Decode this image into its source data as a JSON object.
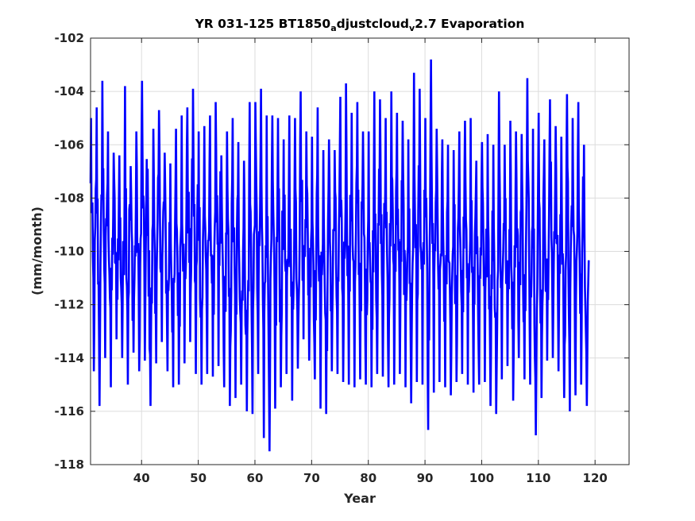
{
  "chart_data": {
    "type": "line",
    "title_parts": {
      "before": "YR 031-125 BT1850",
      "sub1": "a",
      "middle": "djustcloud",
      "sub2": "v",
      "after": "2.7 Evaporation"
    },
    "xlabel": "Year",
    "ylabel": "(mm/month)",
    "xlim": [
      31,
      126
    ],
    "ylim": [
      -118,
      -102
    ],
    "xticks": [
      40,
      50,
      60,
      70,
      80,
      90,
      100,
      110,
      120
    ],
    "xtick_labels": [
      "40",
      "50",
      "60",
      "70",
      "80",
      "90",
      "100",
      "110",
      "120"
    ],
    "yticks": [
      -118,
      -116,
      -114,
      -112,
      -110,
      -108,
      -106,
      -104,
      -102
    ],
    "ytick_labels": [
      "-118",
      "-116",
      "-114",
      "-112",
      "-110",
      "-108",
      "-106",
      "-104",
      "-102"
    ],
    "grid": true,
    "line_color": "#0000ff",
    "series": [
      {
        "x_start": 31,
        "step": 0.0833,
        "annual_peaks": [
          -105.0,
          -104.6,
          -103.6,
          -105.5,
          -106.3,
          -106.4,
          -103.8,
          -106.8,
          -105.5,
          -103.6,
          -106.9,
          -105.4,
          -104.7,
          -106.3,
          -106.7,
          -105.4,
          -104.9,
          -104.6,
          -103.9,
          -105.5,
          -105.3,
          -104.9,
          -104.4,
          -106.4,
          -105.5,
          -105.0,
          -105.9,
          -106.6,
          -104.4,
          -104.4,
          -103.9,
          -104.9,
          -104.9,
          -105.0,
          -105.8,
          -104.9,
          -105.0,
          -104.0,
          -105.5,
          -105.7,
          -104.6,
          -106.2,
          -105.8,
          -106.2,
          -104.2,
          -103.7,
          -104.8,
          -104.4,
          -105.5,
          -105.5,
          -104.0,
          -104.3,
          -105.0,
          -104.0,
          -104.8,
          -105.1,
          -105.8,
          -103.3,
          -103.9,
          -105.0,
          -102.8,
          -105.4,
          -105.8,
          -106.0,
          -106.2,
          -105.5,
          -105.1,
          -105.0,
          -106.6,
          -105.9,
          -105.6,
          -106.0,
          -104.0,
          -106.0,
          -105.1,
          -105.5,
          -105.6,
          -103.5,
          -105.4,
          -104.8,
          -105.8,
          -104.3,
          -105.3,
          -105.7,
          -104.1,
          -105.0,
          -104.4,
          -106.0
        ],
        "annual_troughs": [
          -114.5,
          -115.8,
          -114.0,
          -115.1,
          -113.3,
          -114.0,
          -115.0,
          -113.8,
          -114.5,
          -114.1,
          -115.8,
          -114.2,
          -113.4,
          -114.5,
          -115.1,
          -115.0,
          -114.2,
          -113.4,
          -114.6,
          -115.0,
          -114.6,
          -114.7,
          -114.3,
          -115.1,
          -115.8,
          -115.5,
          -115.0,
          -116.0,
          -116.1,
          -114.6,
          -117.0,
          -117.5,
          -115.9,
          -115.1,
          -114.6,
          -115.6,
          -114.4,
          -113.3,
          -114.1,
          -114.8,
          -115.9,
          -116.1,
          -114.5,
          -114.6,
          -114.9,
          -115.0,
          -115.1,
          -114.8,
          -115.0,
          -115.1,
          -114.6,
          -114.7,
          -115.1,
          -115.0,
          -114.6,
          -115.1,
          -115.7,
          -114.9,
          -115.0,
          -116.7,
          -115.3,
          -114.9,
          -115.1,
          -115.4,
          -114.9,
          -114.6,
          -115.0,
          -115.3,
          -115.0,
          -114.9,
          -115.8,
          -116.1,
          -114.8,
          -114.3,
          -115.6,
          -114.0,
          -114.8,
          -115.0,
          -116.9,
          -115.5,
          -114.1,
          -114.0,
          -114.5,
          -115.5,
          -116.0,
          -115.4,
          -115.0,
          -115.8
        ]
      }
    ]
  }
}
